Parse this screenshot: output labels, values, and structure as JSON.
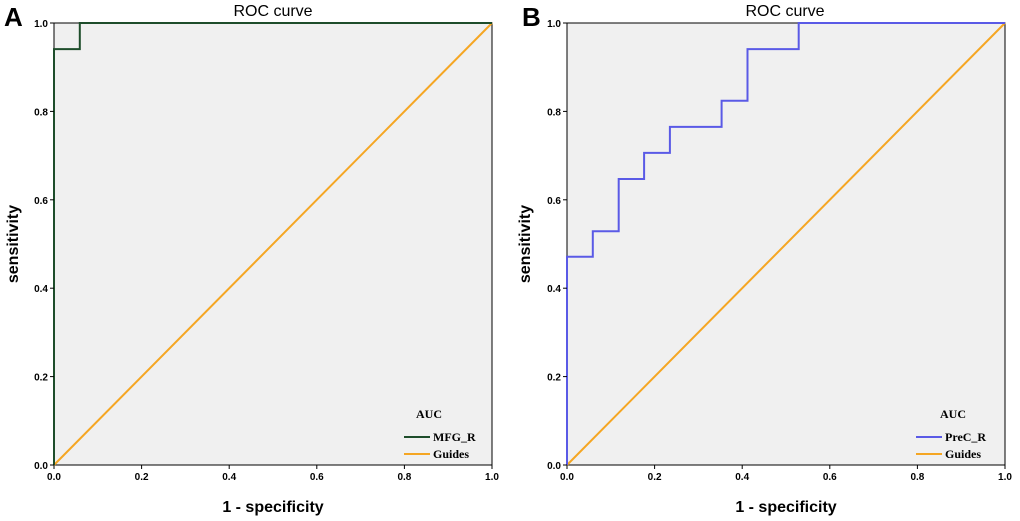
{
  "panels": [
    {
      "letter": "A",
      "title": "ROC curve",
      "xlabel": "1 - specificity",
      "ylabel": "sensitivity",
      "legend_title": "AUC",
      "legend": [
        "MFG_R",
        "Guides"
      ]
    },
    {
      "letter": "B",
      "title": "ROC curve",
      "xlabel": "1 - specificity",
      "ylabel": "sensitivity",
      "legend_title": "AUC",
      "legend": [
        "PreC_R",
        "Guides"
      ]
    }
  ],
  "chart_data": [
    {
      "type": "line",
      "title": "ROC curve",
      "xlabel": "1 - specificity",
      "ylabel": "sensitivity",
      "xlim": [
        0,
        1
      ],
      "ylim": [
        0,
        1
      ],
      "xticks": [
        "0.0",
        "0.2",
        "0.4",
        "0.6",
        "0.8",
        "1.0"
      ],
      "yticks": [
        "0.0",
        "0.2",
        "0.4",
        "0.6",
        "0.8",
        "1.0"
      ],
      "background": "#f0f0f0",
      "legend_title": "AUC",
      "series": [
        {
          "name": "MFG_R",
          "color": "#1e4d2b",
          "x": [
            0,
            0,
            0.059,
            0.059,
            1
          ],
          "y": [
            0,
            0.941,
            0.941,
            1,
            1
          ]
        },
        {
          "name": "Guides",
          "color": "#f5a623",
          "x": [
            0,
            1
          ],
          "y": [
            0,
            1
          ]
        }
      ]
    },
    {
      "type": "line",
      "title": "ROC curve",
      "xlabel": "1 - specificity",
      "ylabel": "sensitivity",
      "xlim": [
        0,
        1
      ],
      "ylim": [
        0,
        1
      ],
      "xticks": [
        "0.0",
        "0.2",
        "0.4",
        "0.6",
        "0.8",
        "1.0"
      ],
      "yticks": [
        "0.0",
        "0.2",
        "0.4",
        "0.6",
        "0.8",
        "1.0"
      ],
      "background": "#f0f0f0",
      "legend_title": "AUC",
      "series": [
        {
          "name": "PreC_R",
          "color": "#5a5ae6",
          "x": [
            0,
            0,
            0.059,
            0.059,
            0.118,
            0.118,
            0.176,
            0.176,
            0.235,
            0.235,
            0.353,
            0.353,
            0.412,
            0.412,
            0.529,
            0.529,
            1
          ],
          "y": [
            0,
            0.471,
            0.471,
            0.529,
            0.529,
            0.647,
            0.647,
            0.706,
            0.706,
            0.765,
            0.765,
            0.824,
            0.824,
            0.941,
            0.941,
            1,
            1
          ]
        },
        {
          "name": "Guides",
          "color": "#f5a623",
          "x": [
            0,
            1
          ],
          "y": [
            0,
            1
          ]
        }
      ]
    }
  ]
}
